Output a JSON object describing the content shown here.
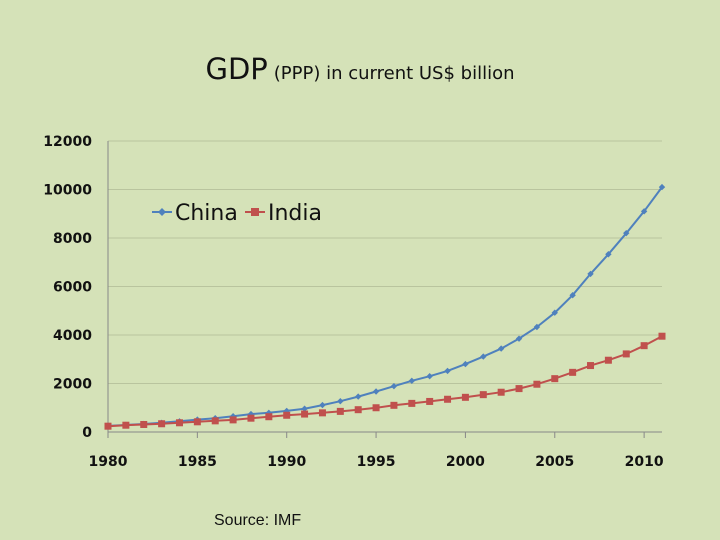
{
  "page": {
    "title_main": "GDP",
    "title_sub": "(PPP) in current US$ billion",
    "source": "Source: IMF"
  },
  "colors": {
    "background": "#d5e2b8",
    "china": "#4f81bd",
    "india": "#c0504d",
    "grid": "#b9c49e",
    "axis": "#888888"
  },
  "chart_data": {
    "type": "line",
    "title": "GDP (PPP) in current US$ billion",
    "xlabel": "",
    "ylabel": "",
    "xlim": [
      1980,
      2011
    ],
    "ylim": [
      0,
      12000
    ],
    "x_ticks": [
      1980,
      1985,
      1990,
      1995,
      2000,
      2005,
      2010
    ],
    "y_ticks": [
      0,
      2000,
      4000,
      6000,
      8000,
      10000,
      12000
    ],
    "grid": true,
    "legend": "upper-left, inside",
    "x": [
      1980,
      1981,
      1982,
      1983,
      1984,
      1985,
      1986,
      1987,
      1988,
      1989,
      1990,
      1991,
      1992,
      1993,
      1994,
      1995,
      1996,
      1997,
      1998,
      1999,
      2000,
      2001,
      2002,
      2003,
      2004,
      2005,
      2006,
      2007,
      2008,
      2009,
      2010,
      2011
    ],
    "series": [
      {
        "name": "China",
        "marker": "diamond",
        "values": [
          250,
          290,
          330,
          380,
          440,
          510,
          570,
          650,
          740,
          790,
          870,
          960,
          1110,
          1270,
          1460,
          1670,
          1890,
          2110,
          2300,
          2520,
          2800,
          3110,
          3440,
          3850,
          4330,
          4920,
          5640,
          6520,
          7330,
          8200,
          9100,
          10100
        ]
      },
      {
        "name": "India",
        "marker": "square",
        "values": [
          240,
          280,
          310,
          340,
          380,
          420,
          460,
          500,
          570,
          630,
          690,
          740,
          790,
          850,
          920,
          1000,
          1100,
          1180,
          1260,
          1350,
          1430,
          1540,
          1640,
          1790,
          1970,
          2200,
          2460,
          2740,
          2960,
          3220,
          3560,
          3950
        ]
      }
    ]
  }
}
